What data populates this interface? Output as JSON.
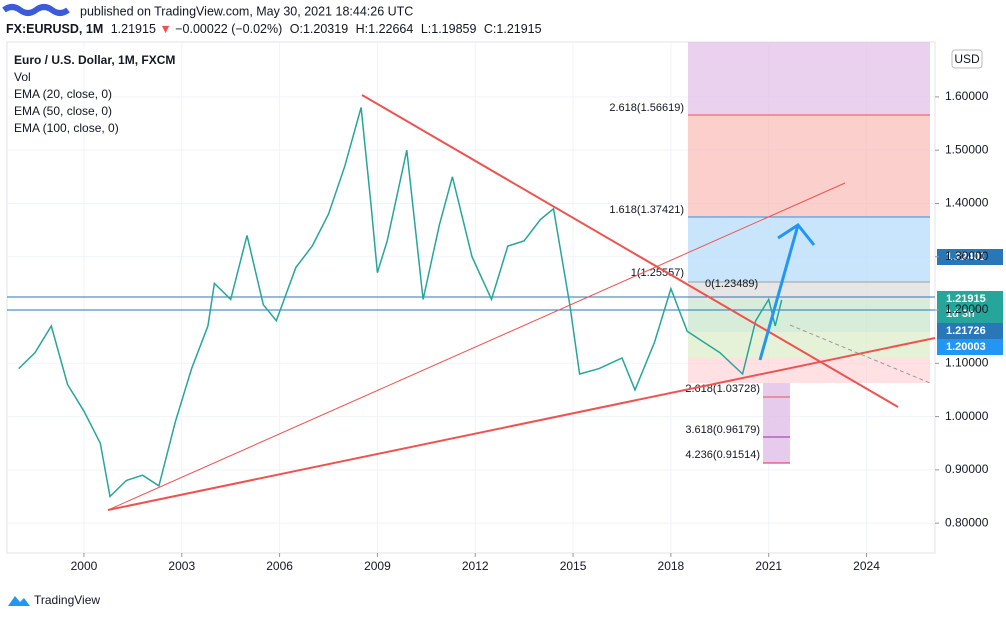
{
  "header": {
    "published": "published on TradingView.com, May 30, 2021 18:44:26 UTC",
    "symbol": "FX:EURUSD, 1M",
    "price": "1.21915",
    "arrow": "▼",
    "change": "−0.00022 (−0.02%)",
    "ohlc": [
      "O:1.20319",
      "H:1.22664",
      "L:1.19859",
      "C:1.21915"
    ]
  },
  "legend": [
    "Euro / U.S. Dollar, 1M, FXCM",
    "Vol",
    "EMA (20, close, 0)",
    "EMA (50, close, 0)",
    "EMA (100, close, 0)"
  ],
  "currency": "USD",
  "fib_labels": [
    "2.618(1.56619)",
    "1.618(1.37421)",
    "1(1.25557)",
    "0(1.23489)",
    "2.618(1.03728)",
    "3.618(0.96179)",
    "4.236(0.91514)"
  ],
  "price_badges": [
    "1.22401",
    "1.21915",
    "1d 3h",
    "1.21726",
    "1.20003"
  ],
  "footer": "TradingView",
  "chart_data": {
    "type": "line",
    "color": "#26a69a",
    "x": [
      1998.0,
      1998.5,
      1999.0,
      1999.5,
      2000.0,
      2000.5,
      2000.8,
      2001.3,
      2001.8,
      2002.3,
      2002.8,
      2003.3,
      2003.8,
      2004.0,
      2004.5,
      2005.0,
      2005.5,
      2005.9,
      2006.5,
      2007.0,
      2007.5,
      2008.0,
      2008.5,
      2008.8,
      2009.0,
      2009.3,
      2009.9,
      2010.4,
      2010.9,
      2011.3,
      2011.9,
      2012.5,
      2013.0,
      2013.5,
      2014.0,
      2014.4,
      2014.9,
      2015.2,
      2015.8,
      2016.5,
      2016.9,
      2017.5,
      2018.0,
      2018.5,
      2019.0,
      2019.5,
      2020.2,
      2020.6,
      2021.0,
      2021.2,
      2021.4
    ],
    "values": [
      1.09,
      1.12,
      1.17,
      1.06,
      1.01,
      0.95,
      0.85,
      0.88,
      0.89,
      0.87,
      0.99,
      1.09,
      1.17,
      1.25,
      1.22,
      1.34,
      1.21,
      1.18,
      1.28,
      1.32,
      1.38,
      1.47,
      1.58,
      1.4,
      1.27,
      1.33,
      1.5,
      1.22,
      1.36,
      1.45,
      1.3,
      1.22,
      1.32,
      1.33,
      1.37,
      1.39,
      1.21,
      1.08,
      1.09,
      1.11,
      1.05,
      1.14,
      1.24,
      1.16,
      1.14,
      1.12,
      1.08,
      1.18,
      1.22,
      1.17,
      1.219
    ],
    "xlim": [
      1997.64,
      2026.1
    ],
    "xticks": [
      2000,
      2003,
      2006,
      2009,
      2012,
      2015,
      2018,
      2021,
      2024
    ],
    "ylim": [
      0.744,
      1.703
    ],
    "yticks": [
      {
        "value": 0.8,
        "label": "0.80000"
      },
      {
        "value": 0.9,
        "label": "0.90000"
      },
      {
        "value": 1.0,
        "label": "1.00000"
      },
      {
        "value": 1.1,
        "label": "1.10000"
      },
      {
        "value": 1.2,
        "label": "1.20000"
      },
      {
        "value": 1.3,
        "label": "1.30000"
      },
      {
        "value": 1.4,
        "label": "1.40000"
      },
      {
        "value": 1.5,
        "label": "1.50000"
      },
      {
        "value": 1.6,
        "label": "1.60000"
      }
    ]
  }
}
